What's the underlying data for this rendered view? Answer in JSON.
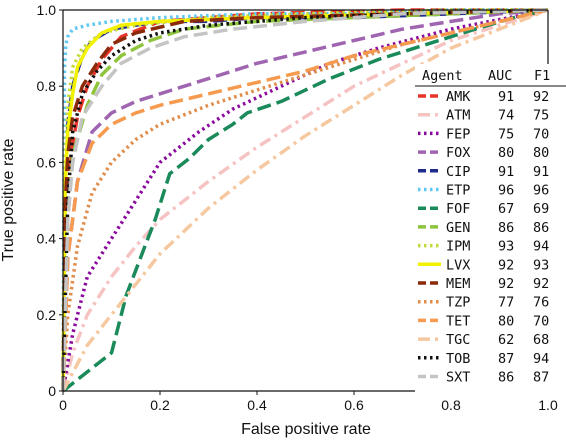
{
  "chart_data": {
    "type": "line",
    "title": "",
    "xlabel": "False positive rate",
    "ylabel": "True positive rate",
    "xlim": [
      0,
      1
    ],
    "ylim": [
      0,
      1
    ],
    "xticks": [
      "0",
      "0.2",
      "0.4",
      "0.6",
      "0.8",
      "1.0"
    ],
    "yticks": [
      "0",
      "0.2",
      "0.4",
      "0.6",
      "0.8",
      "1.0"
    ],
    "grid": false,
    "legend": {
      "placement": "right",
      "headers": [
        "Agent",
        "AUC",
        "F1"
      ]
    },
    "series": [
      {
        "name": "AMK",
        "auc": "91",
        "f1": "92",
        "color": "#e8352a",
        "dash": "dashed",
        "x": [
          0,
          0.005,
          0.01,
          0.02,
          0.03,
          0.05,
          0.08,
          0.12,
          0.2,
          0.4,
          0.7,
          1.0
        ],
        "y": [
          0,
          0.3,
          0.5,
          0.65,
          0.72,
          0.8,
          0.87,
          0.93,
          0.97,
          0.99,
          1.0,
          1.0
        ]
      },
      {
        "name": "ATM",
        "auc": "74",
        "f1": "75",
        "color": "#f6c3c3",
        "dash": "dashdot",
        "x": [
          0,
          0.02,
          0.05,
          0.1,
          0.15,
          0.2,
          0.3,
          0.4,
          0.5,
          0.6,
          0.7,
          0.8,
          0.9,
          1.0
        ],
        "y": [
          0,
          0.1,
          0.2,
          0.3,
          0.38,
          0.45,
          0.55,
          0.64,
          0.72,
          0.8,
          0.86,
          0.92,
          0.96,
          1.0
        ]
      },
      {
        "name": "FEP",
        "auc": "75",
        "f1": "70",
        "color": "#8b0a9e",
        "dash": "dotted",
        "x": [
          0,
          0.02,
          0.05,
          0.1,
          0.15,
          0.2,
          0.28,
          0.35,
          0.45,
          0.55,
          0.65,
          0.8,
          1.0
        ],
        "y": [
          0,
          0.15,
          0.3,
          0.4,
          0.5,
          0.6,
          0.68,
          0.74,
          0.8,
          0.86,
          0.9,
          0.95,
          1.0
        ]
      },
      {
        "name": "FOX",
        "auc": "80",
        "f1": "80",
        "color": "#a065b0",
        "dash": "dashed",
        "x": [
          0,
          0.01,
          0.03,
          0.06,
          0.1,
          0.15,
          0.2,
          0.3,
          0.4,
          0.5,
          0.6,
          0.7,
          0.8,
          0.9,
          1.0
        ],
        "y": [
          0,
          0.35,
          0.55,
          0.68,
          0.73,
          0.76,
          0.78,
          0.82,
          0.86,
          0.89,
          0.92,
          0.95,
          0.97,
          0.99,
          1.0
        ]
      },
      {
        "name": "CIP",
        "auc": "91",
        "f1": "91",
        "color": "#1f2a8c",
        "dash": "dashed",
        "x": [
          0,
          0.01,
          0.02,
          0.04,
          0.06,
          0.1,
          0.15,
          0.2,
          0.3,
          0.4,
          0.6,
          0.8,
          1.0
        ],
        "y": [
          0,
          0.7,
          0.8,
          0.88,
          0.92,
          0.95,
          0.96,
          0.97,
          0.97,
          0.98,
          0.98,
          0.99,
          1.0
        ]
      },
      {
        "name": "ETP",
        "auc": "96",
        "f1": "96",
        "color": "#5ec8f2",
        "dash": "dotted",
        "x": [
          0,
          0.003,
          0.006,
          0.01,
          0.02,
          0.05,
          0.1,
          0.2,
          0.4,
          0.6,
          0.8,
          1.0
        ],
        "y": [
          0,
          0.85,
          0.91,
          0.93,
          0.95,
          0.96,
          0.97,
          0.98,
          0.99,
          0.99,
          1.0,
          1.0
        ]
      },
      {
        "name": "FOF",
        "auc": "67",
        "f1": "69",
        "color": "#1a8a5a",
        "dash": "dashed",
        "x": [
          0,
          0.05,
          0.1,
          0.13,
          0.16,
          0.19,
          0.22,
          0.26,
          0.3,
          0.35,
          0.38,
          0.45,
          0.55,
          0.65,
          0.75,
          0.85,
          0.93,
          1.0
        ],
        "y": [
          0,
          0.05,
          0.1,
          0.25,
          0.35,
          0.45,
          0.57,
          0.61,
          0.66,
          0.7,
          0.73,
          0.76,
          0.82,
          0.87,
          0.91,
          0.95,
          0.98,
          1.0
        ]
      },
      {
        "name": "GEN",
        "auc": "86",
        "f1": "86",
        "color": "#8fc43e",
        "dash": "dashed",
        "x": [
          0,
          0.01,
          0.02,
          0.05,
          0.08,
          0.12,
          0.18,
          0.25,
          0.4,
          0.6,
          0.8,
          1.0
        ],
        "y": [
          0,
          0.45,
          0.62,
          0.75,
          0.83,
          0.88,
          0.92,
          0.95,
          0.97,
          0.98,
          0.99,
          1.0
        ]
      },
      {
        "name": "IPM",
        "auc": "93",
        "f1": "94",
        "color": "#c5d93b",
        "dash": "dotted",
        "x": [
          0,
          0.005,
          0.01,
          0.02,
          0.04,
          0.08,
          0.15,
          0.3,
          0.5,
          0.8,
          1.0
        ],
        "y": [
          0,
          0.6,
          0.75,
          0.85,
          0.9,
          0.94,
          0.96,
          0.98,
          0.99,
          1.0,
          1.0
        ]
      },
      {
        "name": "LVX",
        "auc": "92",
        "f1": "93",
        "color": "#f2f200",
        "dash": "solid",
        "x": [
          0,
          0.005,
          0.01,
          0.02,
          0.03,
          0.05,
          0.08,
          0.12,
          0.2,
          0.4,
          0.7,
          1.0
        ],
        "y": [
          0,
          0.55,
          0.68,
          0.78,
          0.85,
          0.9,
          0.94,
          0.96,
          0.97,
          0.98,
          0.99,
          1.0
        ]
      },
      {
        "name": "MEM",
        "auc": "92",
        "f1": "92",
        "color": "#8a2a0a",
        "dash": "dashed",
        "x": [
          0,
          0.005,
          0.01,
          0.02,
          0.04,
          0.07,
          0.1,
          0.15,
          0.25,
          0.4,
          0.7,
          1.0
        ],
        "y": [
          0,
          0.5,
          0.62,
          0.72,
          0.8,
          0.86,
          0.91,
          0.94,
          0.97,
          0.98,
          0.99,
          1.0
        ]
      },
      {
        "name": "TZP",
        "auc": "77",
        "f1": "76",
        "color": "#e08c4a",
        "dash": "dotted",
        "x": [
          0,
          0.01,
          0.03,
          0.06,
          0.1,
          0.15,
          0.2,
          0.3,
          0.4,
          0.5,
          0.6,
          0.7,
          0.8,
          0.9,
          1.0
        ],
        "y": [
          0,
          0.2,
          0.38,
          0.52,
          0.6,
          0.66,
          0.7,
          0.75,
          0.79,
          0.83,
          0.87,
          0.91,
          0.94,
          0.97,
          1.0
        ]
      },
      {
        "name": "TET",
        "auc": "80",
        "f1": "70",
        "color": "#f59a4e",
        "dash": "dashed",
        "x": [
          0,
          0.01,
          0.03,
          0.06,
          0.1,
          0.15,
          0.2,
          0.3,
          0.4,
          0.5,
          0.6,
          0.7,
          0.8,
          0.9,
          1.0
        ],
        "y": [
          0,
          0.35,
          0.55,
          0.65,
          0.7,
          0.73,
          0.75,
          0.78,
          0.81,
          0.84,
          0.88,
          0.91,
          0.94,
          0.97,
          1.0
        ]
      },
      {
        "name": "TGC",
        "auc": "62",
        "f1": "68",
        "color": "#f5c8a0",
        "dash": "dashdot",
        "x": [
          0,
          0.05,
          0.1,
          0.15,
          0.2,
          0.25,
          0.3,
          0.4,
          0.5,
          0.6,
          0.7,
          0.8,
          0.9,
          1.0
        ],
        "y": [
          0,
          0.12,
          0.2,
          0.28,
          0.36,
          0.42,
          0.48,
          0.58,
          0.67,
          0.75,
          0.83,
          0.9,
          0.95,
          1.0
        ]
      },
      {
        "name": "TOB",
        "auc": "87",
        "f1": "94",
        "color": "#111111",
        "dash": "dotted",
        "x": [
          0,
          0.01,
          0.02,
          0.04,
          0.07,
          0.1,
          0.15,
          0.2,
          0.3,
          0.5,
          0.7,
          1.0
        ],
        "y": [
          0,
          0.5,
          0.68,
          0.78,
          0.84,
          0.88,
          0.92,
          0.94,
          0.96,
          0.98,
          0.99,
          1.0
        ]
      },
      {
        "name": "SXT",
        "auc": "86",
        "f1": "87",
        "color": "#c4c4c4",
        "dash": "dashed",
        "x": [
          0,
          0.01,
          0.02,
          0.04,
          0.08,
          0.12,
          0.18,
          0.25,
          0.35,
          0.5,
          0.7,
          1.0
        ],
        "y": [
          0,
          0.45,
          0.6,
          0.72,
          0.8,
          0.86,
          0.9,
          0.93,
          0.95,
          0.97,
          0.99,
          1.0
        ]
      }
    ]
  }
}
